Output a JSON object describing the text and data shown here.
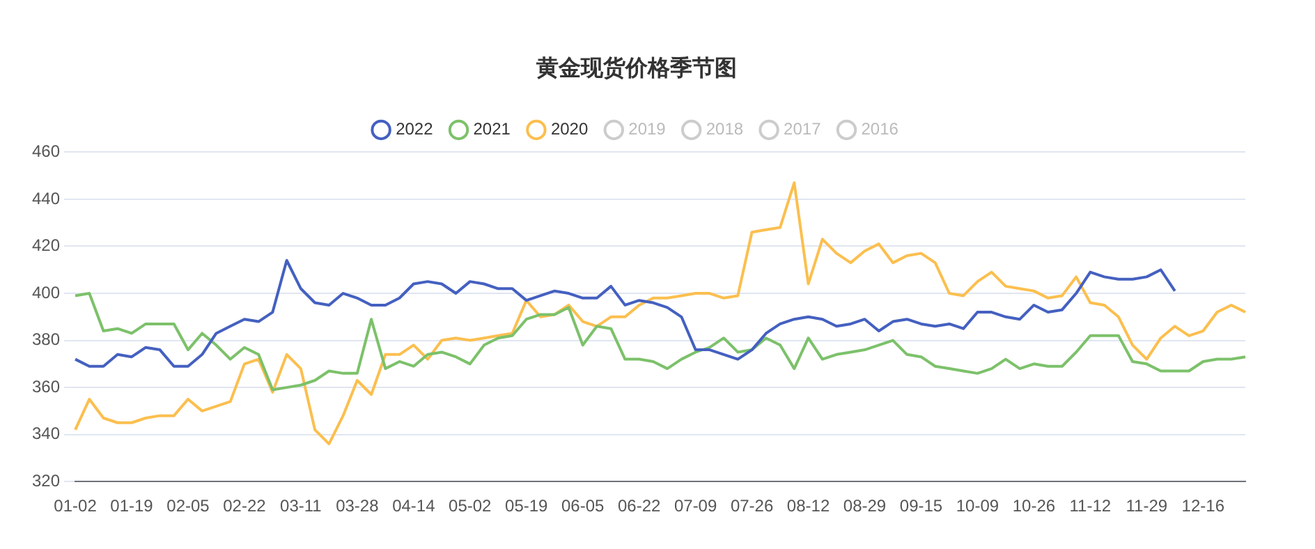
{
  "chart_data": {
    "type": "line",
    "title": "黄金现货价格季节图",
    "categories": [
      "01-02",
      null,
      null,
      null,
      "01-19",
      null,
      null,
      null,
      "02-05",
      null,
      null,
      null,
      "02-22",
      null,
      null,
      null,
      "03-11",
      null,
      null,
      null,
      "03-28",
      null,
      null,
      null,
      "04-14",
      null,
      null,
      null,
      "05-02",
      null,
      null,
      null,
      "05-19",
      null,
      null,
      null,
      "06-05",
      null,
      null,
      null,
      "06-22",
      null,
      null,
      null,
      "07-09",
      null,
      null,
      null,
      "07-26",
      null,
      null,
      null,
      "08-12",
      null,
      null,
      null,
      "08-29",
      null,
      null,
      null,
      "09-15",
      null,
      null,
      null,
      "10-09",
      null,
      null,
      null,
      "10-26",
      null,
      null,
      null,
      "11-12",
      null,
      null,
      null,
      "11-29",
      null,
      null,
      null,
      "12-16",
      null,
      null,
      null
    ],
    "series": [
      {
        "name": "2022",
        "color": "#4460c0",
        "values": [
          372,
          369,
          369,
          374,
          373,
          377,
          376,
          369,
          369,
          374,
          383,
          386,
          389,
          388,
          392,
          414,
          402,
          396,
          395,
          400,
          398,
          395,
          395,
          398,
          404,
          405,
          404,
          400,
          405,
          404,
          402,
          402,
          397,
          399,
          401,
          400,
          398,
          398,
          403,
          395,
          397,
          396,
          394,
          390,
          376,
          376,
          374,
          372,
          376,
          383,
          387,
          389,
          390,
          389,
          386,
          387,
          389,
          384,
          388,
          389,
          387,
          386,
          387,
          385,
          392,
          392,
          390,
          389,
          395,
          392,
          393,
          400,
          409,
          407,
          406,
          406,
          407,
          410,
          401,
          null,
          null,
          null,
          null,
          null
        ]
      },
      {
        "name": "2021",
        "color": "#7cc16a",
        "values": [
          399,
          400,
          384,
          385,
          383,
          387,
          387,
          387,
          376,
          383,
          378,
          372,
          377,
          374,
          359,
          360,
          361,
          363,
          367,
          366,
          366,
          389,
          368,
          371,
          369,
          374,
          375,
          373,
          370,
          378,
          381,
          382,
          389,
          391,
          391,
          394,
          378,
          386,
          385,
          372,
          372,
          371,
          368,
          372,
          375,
          377,
          381,
          375,
          376,
          381,
          378,
          368,
          381,
          372,
          374,
          375,
          376,
          378,
          380,
          374,
          373,
          369,
          368,
          367,
          366,
          368,
          372,
          368,
          370,
          369,
          369,
          375,
          382,
          382,
          382,
          371,
          370,
          367,
          367,
          367,
          371,
          372,
          372,
          373
        ]
      },
      {
        "name": "2020",
        "color": "#fbbf4f",
        "values": [
          342,
          355,
          347,
          345,
          345,
          347,
          348,
          348,
          355,
          350,
          352,
          354,
          370,
          372,
          358,
          374,
          368,
          342,
          336,
          348,
          363,
          357,
          374,
          374,
          378,
          372,
          380,
          381,
          380,
          381,
          382,
          383,
          397,
          390,
          391,
          395,
          388,
          386,
          390,
          390,
          395,
          398,
          398,
          399,
          400,
          400,
          398,
          399,
          426,
          427,
          428,
          447,
          404,
          423,
          417,
          413,
          418,
          421,
          413,
          416,
          417,
          413,
          400,
          399,
          405,
          409,
          403,
          402,
          401,
          398,
          399,
          407,
          396,
          395,
          390,
          378,
          372,
          381,
          386,
          382,
          384,
          392,
          395,
          392
        ]
      },
      {
        "name": "2019",
        "color": "#cccccc",
        "values": [
          null,
          null,
          null,
          null,
          null,
          null,
          null,
          null,
          null,
          null,
          null,
          null,
          null,
          null,
          null,
          null,
          null,
          null,
          null,
          null,
          null,
          null,
          null,
          null,
          null,
          null,
          null,
          null,
          null,
          null,
          null,
          null,
          null,
          null,
          null,
          null,
          null,
          null,
          null,
          null,
          null,
          null,
          null,
          null,
          null,
          null,
          null,
          null,
          null,
          null,
          null,
          null,
          null,
          null,
          null,
          null,
          null,
          null,
          null,
          null,
          null,
          null,
          null,
          null,
          null,
          null,
          null,
          null,
          null,
          null,
          null,
          null,
          null,
          null,
          null,
          null,
          null,
          null,
          null,
          null,
          null,
          null,
          null,
          null
        ]
      },
      {
        "name": "2018",
        "color": "#cccccc",
        "values": [
          null,
          null,
          null,
          null,
          null,
          null,
          null,
          null,
          null,
          null,
          null,
          null,
          null,
          null,
          null,
          null,
          null,
          null,
          null,
          null,
          null,
          null,
          null,
          null,
          null,
          null,
          null,
          null,
          null,
          null,
          null,
          null,
          null,
          null,
          null,
          null,
          null,
          null,
          null,
          null,
          null,
          null,
          null,
          null,
          null,
          null,
          null,
          null,
          null,
          null,
          null,
          null,
          null,
          null,
          null,
          null,
          null,
          null,
          null,
          null,
          null,
          null,
          null,
          null,
          null,
          null,
          null,
          null,
          null,
          null,
          null,
          null,
          null,
          null,
          null,
          null,
          null,
          null,
          null,
          null,
          null,
          null,
          null,
          null
        ]
      },
      {
        "name": "2017",
        "color": "#cccccc",
        "values": [
          null,
          null,
          null,
          null,
          null,
          null,
          null,
          null,
          null,
          null,
          null,
          null,
          null,
          null,
          null,
          null,
          null,
          null,
          null,
          null,
          null,
          null,
          null,
          null,
          null,
          null,
          null,
          null,
          null,
          null,
          null,
          null,
          null,
          null,
          null,
          null,
          null,
          null,
          null,
          null,
          null,
          null,
          null,
          null,
          null,
          null,
          null,
          null,
          null,
          null,
          null,
          null,
          null,
          null,
          null,
          null,
          null,
          null,
          null,
          null,
          null,
          null,
          null,
          null,
          null,
          null,
          null,
          null,
          null,
          null,
          null,
          null,
          null,
          null,
          null,
          null,
          null,
          null,
          null,
          null,
          null,
          null,
          null,
          null
        ]
      },
      {
        "name": "2016",
        "color": "#cccccc",
        "values": [
          null,
          null,
          null,
          null,
          null,
          null,
          null,
          null,
          null,
          null,
          null,
          null,
          null,
          null,
          null,
          null,
          null,
          null,
          null,
          null,
          null,
          null,
          null,
          null,
          null,
          null,
          null,
          null,
          null,
          null,
          null,
          null,
          null,
          null,
          null,
          null,
          null,
          null,
          null,
          null,
          null,
          null,
          null,
          null,
          null,
          null,
          null,
          null,
          null,
          null,
          null,
          null,
          null,
          null,
          null,
          null,
          null,
          null,
          null,
          null,
          null,
          null,
          null,
          null,
          null,
          null,
          null,
          null,
          null,
          null,
          null,
          null,
          null,
          null,
          null,
          null,
          null,
          null,
          null,
          null,
          null,
          null,
          null,
          null
        ]
      }
    ],
    "ylim": [
      320,
      460
    ],
    "yticks": [
      320,
      340,
      360,
      380,
      400,
      420,
      440,
      460
    ],
    "grid": "y",
    "legend": "top",
    "marker": "none",
    "line_style": "solid"
  }
}
